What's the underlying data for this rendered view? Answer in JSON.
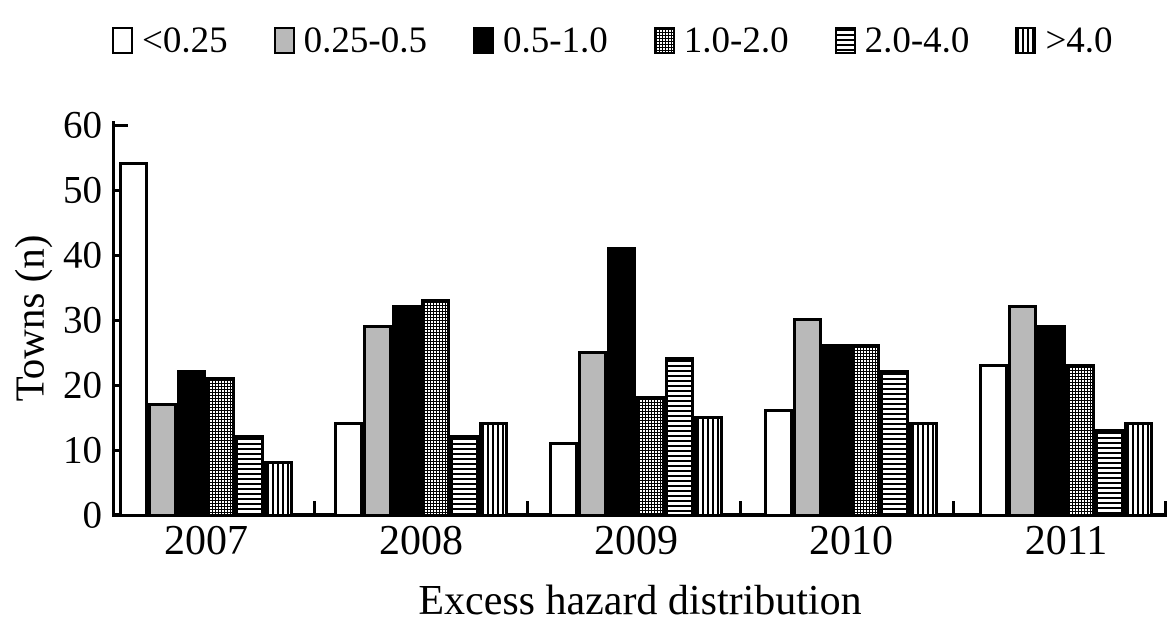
{
  "chart_data": {
    "type": "bar",
    "title": "",
    "xlabel": "Excess hazard distribution",
    "ylabel": "Towns (n)",
    "ylim": [
      0,
      60
    ],
    "yticks": [
      0,
      10,
      20,
      30,
      40,
      50,
      60
    ],
    "grid": false,
    "legend_position": "top",
    "categories": [
      "2007",
      "2008",
      "2009",
      "2010",
      "2011"
    ],
    "series": [
      {
        "name": "<0.25",
        "pattern": "white",
        "fill": "#ffffff",
        "values": [
          54,
          14,
          11,
          16,
          23
        ]
      },
      {
        "name": "0.25-0.5",
        "pattern": "gray",
        "fill": "#b9b9b9",
        "values": [
          17,
          29,
          25,
          30,
          32
        ]
      },
      {
        "name": "0.5-1.0",
        "pattern": "black",
        "fill": "#000000",
        "values": [
          22,
          32,
          41,
          26,
          29
        ]
      },
      {
        "name": "1.0-2.0",
        "pattern": "grid",
        "fill": "crosshatch",
        "values": [
          21,
          33,
          18,
          26,
          23
        ]
      },
      {
        "name": "2.0-4.0",
        "pattern": "hlines",
        "fill": "horizontal-lines",
        "values": [
          12,
          12,
          24,
          22,
          13
        ]
      },
      {
        "name": ">4.0",
        "pattern": "vlines",
        "fill": "vertical-lines",
        "values": [
          8,
          14,
          15,
          14,
          14
        ]
      }
    ],
    "colors": {
      "outline": "#000000",
      "background": "#ffffff",
      "gray": "#b9b9b9"
    }
  }
}
